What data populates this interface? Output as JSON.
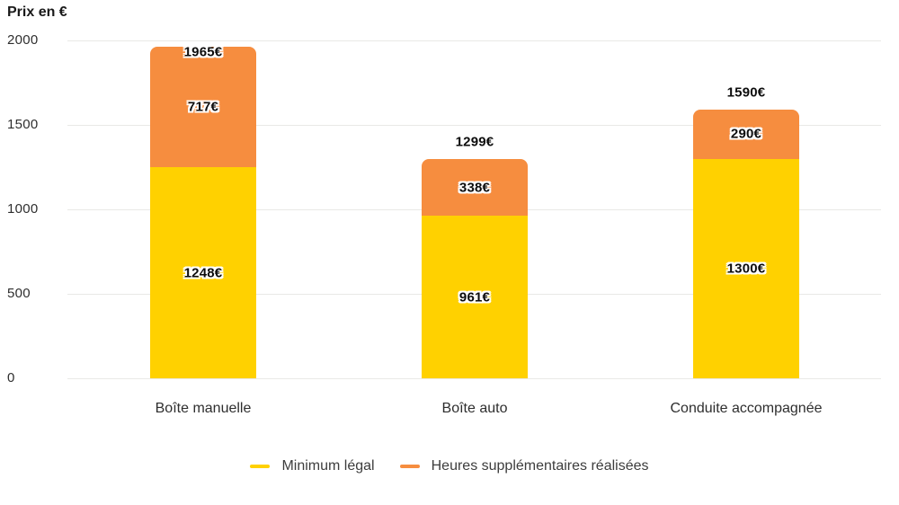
{
  "title": "Prix en €",
  "legend": {
    "items": [
      {
        "label": "Minimum légal",
        "color": "#FFD100"
      },
      {
        "label": "Heures supplémentaires réalisées",
        "color": "#F68D3F"
      }
    ]
  },
  "chart_data": {
    "type": "bar",
    "stacked": true,
    "title": "Prix en €",
    "ylabel": "Prix en €",
    "xlabel": "",
    "categories": [
      "Boîte manuelle",
      "Boîte auto",
      "Conduite accompagnée"
    ],
    "series": [
      {
        "name": "Minimum légal",
        "color": "#FFD100",
        "values": [
          1248,
          961,
          1300
        ],
        "labels": [
          "1248€",
          "961€",
          "1300€"
        ]
      },
      {
        "name": "Heures supplémentaires réalisées",
        "color": "#F68D3F",
        "values": [
          717,
          338,
          290
        ],
        "labels": [
          "717€",
          "338€",
          "290€"
        ]
      }
    ],
    "totals": [
      1965,
      1299,
      1590
    ],
    "total_labels": [
      "1965€",
      "1299€",
      "1590€"
    ],
    "y_ticks": [
      0,
      500,
      1000,
      1500,
      2000
    ],
    "ylim": [
      0,
      2000
    ],
    "grid": true,
    "grid_color": "#e9e9e6",
    "legend_position": "bottom"
  }
}
